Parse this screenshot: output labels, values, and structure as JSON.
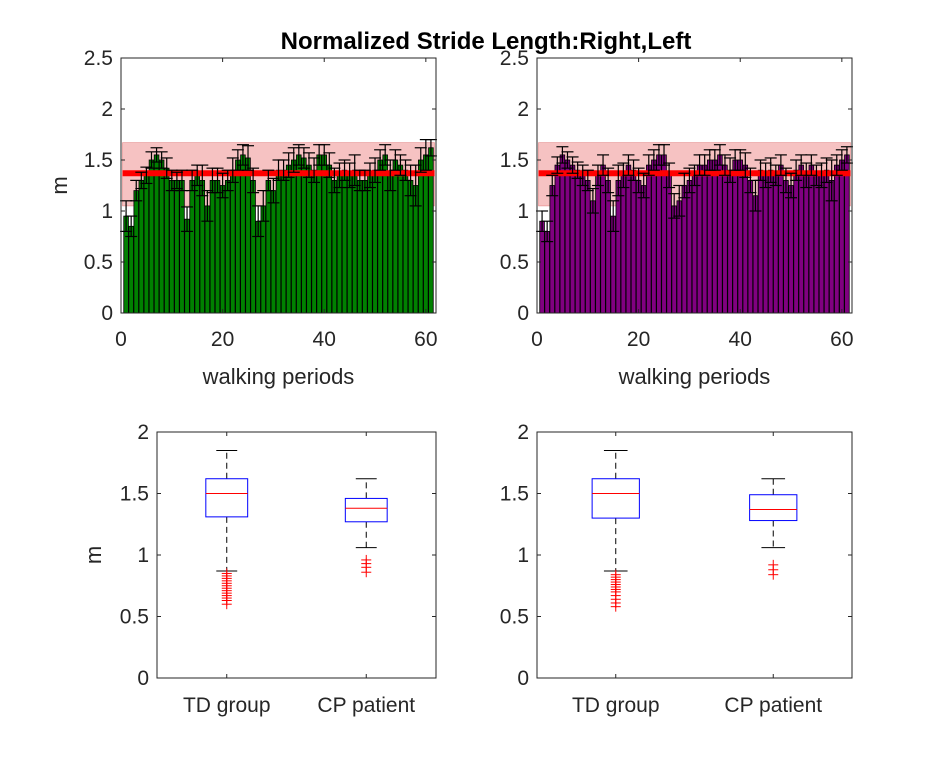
{
  "title": "Normalized Stride Length:Right,Left",
  "chart_data": [
    {
      "type": "bar",
      "xlabel": "walking periods",
      "ylabel": "m",
      "xlim": [
        0,
        62
      ],
      "ylim": [
        0,
        2.5
      ],
      "xticks": [
        "0",
        "20",
        "40",
        "60"
      ],
      "yticks": [
        "0",
        "0.5",
        "1",
        "1.5",
        "2",
        "2.5"
      ],
      "bar_color": "#008000",
      "reference_band": {
        "low": 1.05,
        "high": 1.67,
        "color": "#f5b8b8"
      },
      "reference_mean": {
        "value": 1.37,
        "color": "#ff0000"
      },
      "x": [
        1,
        2,
        3,
        4,
        5,
        6,
        7,
        8,
        9,
        10,
        11,
        12,
        13,
        14,
        15,
        16,
        17,
        18,
        19,
        20,
        21,
        22,
        23,
        24,
        25,
        26,
        27,
        28,
        29,
        30,
        31,
        32,
        33,
        34,
        35,
        36,
        37,
        38,
        39,
        40,
        41,
        42,
        43,
        44,
        45,
        46,
        47,
        48,
        49,
        50,
        51,
        52,
        53,
        54,
        55,
        56,
        57,
        58,
        59,
        60,
        61
      ],
      "values": [
        0.95,
        0.85,
        1.2,
        1.3,
        1.35,
        1.5,
        1.55,
        1.5,
        1.42,
        1.3,
        1.3,
        1.3,
        0.92,
        1.3,
        1.35,
        1.3,
        1.05,
        1.3,
        1.3,
        1.25,
        1.3,
        1.4,
        1.5,
        1.55,
        1.52,
        1.3,
        0.9,
        1.05,
        1.3,
        1.2,
        1.4,
        1.4,
        1.45,
        1.5,
        1.55,
        1.52,
        1.45,
        1.4,
        1.55,
        1.55,
        1.45,
        1.3,
        1.35,
        1.4,
        1.35,
        1.4,
        1.3,
        1.3,
        1.35,
        1.4,
        1.5,
        1.55,
        1.35,
        1.5,
        1.45,
        1.4,
        1.3,
        1.25,
        1.5,
        1.55,
        1.62
      ],
      "errors": [
        0.15,
        0.1,
        0.1,
        0.08,
        0.08,
        0.08,
        0.07,
        0.08,
        0.1,
        0.1,
        0.08,
        0.1,
        0.12,
        0.1,
        0.1,
        0.15,
        0.15,
        0.12,
        0.12,
        0.12,
        0.1,
        0.12,
        0.1,
        0.1,
        0.12,
        0.12,
        0.15,
        0.15,
        0.1,
        0.12,
        0.1,
        0.1,
        0.12,
        0.12,
        0.1,
        0.1,
        0.12,
        0.12,
        0.1,
        0.1,
        0.12,
        0.12,
        0.12,
        0.1,
        0.12,
        0.15,
        0.1,
        0.1,
        0.12,
        0.12,
        0.1,
        0.1,
        0.15,
        0.1,
        0.1,
        0.1,
        0.15,
        0.2,
        0.12,
        0.15,
        0.08
      ]
    },
    {
      "type": "bar",
      "xlabel": "walking periods",
      "ylabel": "",
      "xlim": [
        0,
        62
      ],
      "ylim": [
        0,
        2.5
      ],
      "xticks": [
        "0",
        "20",
        "40",
        "60"
      ],
      "yticks": [
        "0",
        "0.5",
        "1",
        "1.5",
        "2",
        "2.5"
      ],
      "bar_color": "#800080",
      "reference_band": {
        "low": 1.05,
        "high": 1.67,
        "color": "#f5b8b8"
      },
      "reference_mean": {
        "value": 1.37,
        "color": "#ff0000"
      },
      "x": [
        1,
        2,
        3,
        4,
        5,
        6,
        7,
        8,
        9,
        10,
        11,
        12,
        13,
        14,
        15,
        16,
        17,
        18,
        19,
        20,
        21,
        22,
        23,
        24,
        25,
        26,
        27,
        28,
        29,
        30,
        31,
        32,
        33,
        34,
        35,
        36,
        37,
        38,
        39,
        40,
        41,
        42,
        43,
        44,
        45,
        46,
        47,
        48,
        49,
        50,
        51,
        52,
        53,
        54,
        55,
        56,
        57,
        58,
        59,
        60,
        61
      ],
      "values": [
        0.9,
        0.8,
        1.25,
        1.45,
        1.55,
        1.5,
        1.45,
        1.4,
        1.35,
        1.3,
        1.1,
        1.35,
        1.45,
        1.3,
        0.95,
        1.3,
        1.35,
        1.45,
        1.4,
        1.3,
        1.25,
        1.45,
        1.5,
        1.55,
        1.55,
        1.35,
        1.05,
        1.1,
        1.25,
        1.3,
        1.35,
        1.45,
        1.45,
        1.5,
        1.5,
        1.55,
        1.45,
        1.4,
        1.5,
        1.5,
        1.45,
        1.3,
        1.15,
        1.4,
        1.35,
        1.4,
        1.35,
        1.45,
        1.3,
        1.25,
        1.4,
        1.45,
        1.35,
        1.45,
        1.35,
        1.35,
        1.4,
        1.3,
        1.45,
        1.5,
        1.55
      ],
      "errors": [
        0.1,
        0.1,
        0.1,
        0.08,
        0.08,
        0.08,
        0.08,
        0.08,
        0.1,
        0.1,
        0.12,
        0.1,
        0.1,
        0.12,
        0.15,
        0.15,
        0.12,
        0.1,
        0.1,
        0.12,
        0.12,
        0.1,
        0.1,
        0.1,
        0.1,
        0.12,
        0.12,
        0.15,
        0.12,
        0.12,
        0.1,
        0.1,
        0.1,
        0.1,
        0.1,
        0.1,
        0.1,
        0.12,
        0.1,
        0.1,
        0.12,
        0.12,
        0.15,
        0.1,
        0.12,
        0.12,
        0.1,
        0.1,
        0.12,
        0.12,
        0.1,
        0.1,
        0.12,
        0.1,
        0.1,
        0.12,
        0.12,
        0.2,
        0.1,
        0.1,
        0.08
      ]
    },
    {
      "type": "box",
      "xlabel": "",
      "ylabel": "m",
      "ylim": [
        0,
        2
      ],
      "yticks": [
        "0",
        "0.5",
        "1",
        "1.5",
        "2"
      ],
      "categories": [
        "TD group",
        "CP patient"
      ],
      "box_color": "#0000ff",
      "median_color": "#ff0000",
      "outlier_color": "#ff0000",
      "boxes": [
        {
          "whisker_low": 0.87,
          "q1": 1.31,
          "median": 1.5,
          "q3": 1.62,
          "whisker_high": 1.85,
          "outliers": [
            0.6,
            0.63,
            0.65,
            0.67,
            0.69,
            0.71,
            0.73,
            0.75,
            0.77,
            0.79,
            0.81,
            0.83,
            0.85
          ]
        },
        {
          "whisker_low": 1.06,
          "q1": 1.27,
          "median": 1.38,
          "q3": 1.46,
          "whisker_high": 1.62,
          "outliers": [
            0.86,
            0.9,
            0.93,
            0.96
          ]
        }
      ]
    },
    {
      "type": "box",
      "xlabel": "",
      "ylabel": "",
      "ylim": [
        0,
        2
      ],
      "yticks": [
        "0",
        "0.5",
        "1",
        "1.5",
        "2"
      ],
      "categories": [
        "TD group",
        "CP patient"
      ],
      "box_color": "#0000ff",
      "median_color": "#ff0000",
      "outlier_color": "#ff0000",
      "boxes": [
        {
          "whisker_low": 0.87,
          "q1": 1.3,
          "median": 1.5,
          "q3": 1.62,
          "whisker_high": 1.85,
          "outliers": [
            0.58,
            0.61,
            0.64,
            0.67,
            0.7,
            0.72,
            0.74,
            0.76,
            0.78,
            0.8,
            0.82,
            0.84
          ]
        },
        {
          "whisker_low": 1.06,
          "q1": 1.28,
          "median": 1.37,
          "q3": 1.49,
          "whisker_high": 1.62,
          "outliers": [
            0.84,
            0.88,
            0.92
          ]
        }
      ]
    }
  ]
}
